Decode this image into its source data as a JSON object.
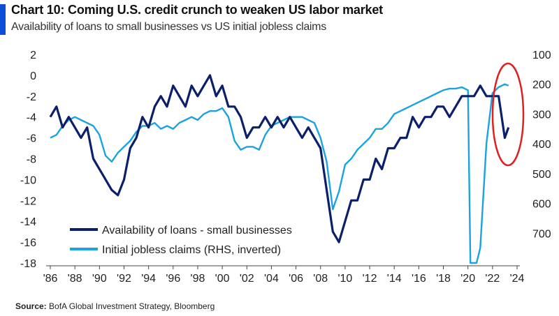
{
  "title": "Chart 10: Coming U.S. credit crunch to weaken US labor market",
  "subtitle": "Availability of loans to small businesses vs US initial jobless claims",
  "source_label": "Source:",
  "source_text": "BofA Global Investment Strategy, Bloomberg",
  "colors": {
    "accent": "#0a4fd6",
    "loans": "#0b1f6b",
    "claims": "#1aa3e0",
    "highlight": "#e02020"
  },
  "chart_data": {
    "type": "line",
    "title": "Chart 10: Coming U.S. credit crunch to weaken US labor market",
    "subtitle": "Availability of loans to small businesses vs US initial jobless claims",
    "xlim": [
      1986,
      2024
    ],
    "xticks": [
      1986,
      1988,
      1990,
      1992,
      1994,
      1996,
      1998,
      2000,
      2002,
      2004,
      2006,
      2008,
      2010,
      2012,
      2014,
      2016,
      2018,
      2020,
      2022,
      2024
    ],
    "xtick_labels": [
      "'86",
      "'88",
      "'90",
      "'92",
      "'94",
      "'96",
      "'98",
      "'00",
      "'02",
      "'04",
      "'06",
      "'08",
      "'10",
      "'12",
      "'14",
      "'16",
      "'18",
      "'20",
      "'22",
      "'24"
    ],
    "y_left": {
      "ylim": [
        -18,
        2
      ],
      "ticks": [
        2,
        0,
        -2,
        -4,
        -6,
        -8,
        -10,
        -12,
        -14,
        -16,
        -18
      ]
    },
    "y_right": {
      "ylim": [
        800,
        100
      ],
      "inverted": true,
      "ticks": [
        100,
        200,
        300,
        400,
        500,
        600,
        700
      ]
    },
    "legend_placement": "lower-left",
    "series": [
      {
        "name": "Availability of loans - small businesses",
        "axis": "left",
        "x": [
          1986.0,
          1986.5,
          1987.0,
          1987.5,
          1988.0,
          1988.5,
          1989.0,
          1989.5,
          1990.0,
          1990.5,
          1991.0,
          1991.5,
          1992.0,
          1992.5,
          1993.0,
          1993.5,
          1994.0,
          1994.5,
          1995.0,
          1995.5,
          1996.0,
          1996.5,
          1997.0,
          1997.5,
          1998.0,
          1998.5,
          1999.0,
          1999.5,
          2000.0,
          2000.5,
          2001.0,
          2001.5,
          2002.0,
          2002.5,
          2003.0,
          2003.5,
          2004.0,
          2004.5,
          2005.0,
          2005.5,
          2006.0,
          2006.5,
          2007.0,
          2007.5,
          2008.0,
          2008.5,
          2009.0,
          2009.5,
          2010.0,
          2010.5,
          2011.0,
          2011.5,
          2012.0,
          2012.5,
          2013.0,
          2013.5,
          2014.0,
          2014.5,
          2015.0,
          2015.5,
          2016.0,
          2016.5,
          2017.0,
          2017.5,
          2018.0,
          2018.5,
          2019.0,
          2019.5,
          2020.0,
          2020.5,
          2021.0,
          2021.5,
          2022.0,
          2022.5,
          2023.0,
          2023.3
        ],
        "values": [
          -4,
          -3,
          -5,
          -4,
          -5,
          -6,
          -5,
          -8,
          -9,
          -10,
          -11,
          -11.5,
          -10,
          -7,
          -6,
          -4,
          -5,
          -3,
          -2,
          -3,
          -1,
          -2,
          -3,
          -1,
          -2,
          -1,
          0,
          -2,
          -1,
          -3,
          -3,
          -4,
          -6,
          -5,
          -5,
          -4,
          -5,
          -4,
          -5,
          -4,
          -5,
          -6,
          -5,
          -6,
          -7,
          -11,
          -15,
          -16,
          -14,
          -12,
          -12,
          -10,
          -10,
          -8,
          -9,
          -7,
          -7,
          -6,
          -6,
          -4,
          -5,
          -4,
          -4,
          -3,
          -3,
          -4,
          -3,
          -2,
          -2,
          -2,
          -1,
          -2,
          -2,
          -2,
          -6,
          -5
        ]
      },
      {
        "name": "Initial jobless claims (RHS, inverted)",
        "axis": "right",
        "x": [
          1986.0,
          1986.5,
          1987.0,
          1987.5,
          1988.0,
          1988.5,
          1989.0,
          1989.5,
          1990.0,
          1990.5,
          1991.0,
          1991.5,
          1992.0,
          1992.5,
          1993.0,
          1993.5,
          1994.0,
          1994.5,
          1995.0,
          1995.5,
          1996.0,
          1996.5,
          1997.0,
          1997.5,
          1998.0,
          1998.5,
          1999.0,
          1999.5,
          2000.0,
          2000.5,
          2001.0,
          2001.5,
          2002.0,
          2002.5,
          2003.0,
          2003.5,
          2004.0,
          2004.5,
          2005.0,
          2005.5,
          2006.0,
          2006.5,
          2007.0,
          2007.5,
          2008.0,
          2008.5,
          2009.0,
          2009.5,
          2010.0,
          2010.5,
          2011.0,
          2011.5,
          2012.0,
          2012.5,
          2013.0,
          2013.5,
          2014.0,
          2014.5,
          2015.0,
          2015.5,
          2016.0,
          2016.5,
          2017.0,
          2017.5,
          2018.0,
          2018.5,
          2019.0,
          2019.5,
          2020.0,
          2020.2,
          2020.4,
          2020.7,
          2021.0,
          2021.5,
          2022.0,
          2022.5,
          2023.0,
          2023.3
        ],
        "values": [
          380,
          370,
          340,
          320,
          310,
          320,
          330,
          340,
          370,
          440,
          460,
          430,
          410,
          390,
          360,
          340,
          340,
          330,
          350,
          340,
          350,
          330,
          320,
          310,
          320,
          300,
          290,
          290,
          280,
          310,
          390,
          420,
          410,
          410,
          420,
          370,
          340,
          330,
          320,
          310,
          310,
          310,
          320,
          330,
          380,
          460,
          620,
          560,
          470,
          450,
          420,
          400,
          380,
          350,
          350,
          330,
          300,
          290,
          280,
          270,
          260,
          250,
          240,
          230,
          220,
          215,
          215,
          210,
          220,
          800,
          800,
          800,
          750,
          400,
          230,
          210,
          200,
          205
        ]
      }
    ]
  }
}
